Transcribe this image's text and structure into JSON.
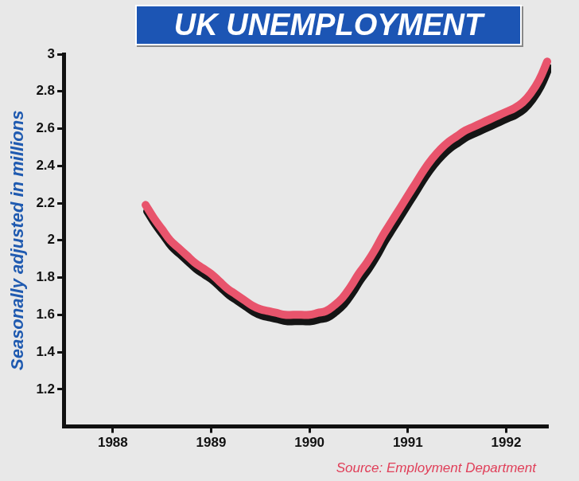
{
  "chart_data": {
    "type": "line",
    "title": "UK UNEMPLOYMENT",
    "y_label": "Seasonally adjusted in millions",
    "source": "Source: Employment Department",
    "categories": [
      null,
      null,
      null,
      null,
      null,
      null,
      "1988",
      null,
      null,
      null,
      null,
      null,
      null,
      null,
      null,
      null,
      null,
      null,
      "1989",
      null,
      null,
      null,
      null,
      null,
      null,
      null,
      null,
      null,
      null,
      null,
      "1990",
      null,
      null,
      null,
      null,
      null,
      null,
      null,
      null,
      null,
      null,
      null,
      "1991",
      null,
      null,
      null,
      null,
      null,
      null,
      null,
      null,
      null,
      null,
      null,
      "1992",
      null,
      null,
      null,
      null,
      null
    ],
    "values": [
      null,
      null,
      null,
      null,
      null,
      null,
      null,
      null,
      null,
      null,
      2.19,
      2.12,
      2.06,
      2.0,
      1.96,
      1.92,
      1.88,
      1.85,
      1.82,
      1.78,
      1.74,
      1.71,
      1.68,
      1.65,
      1.63,
      1.62,
      1.61,
      1.6,
      1.6,
      1.6,
      1.6,
      1.61,
      1.62,
      1.65,
      1.69,
      1.75,
      1.82,
      1.88,
      1.95,
      2.03,
      2.1,
      2.17,
      2.24,
      2.31,
      2.38,
      2.44,
      2.49,
      2.53,
      2.56,
      2.59,
      2.61,
      2.63,
      2.65,
      2.67,
      2.69,
      2.71,
      2.74,
      2.79,
      2.86,
      2.96
    ],
    "color": "#e8546c",
    "ylim": [
      1,
      3
    ],
    "yticks": [
      1.2,
      1.4,
      1.6,
      1.8,
      2,
      2.2,
      2.4,
      2.6,
      2.8,
      3
    ],
    "grid": false
  }
}
